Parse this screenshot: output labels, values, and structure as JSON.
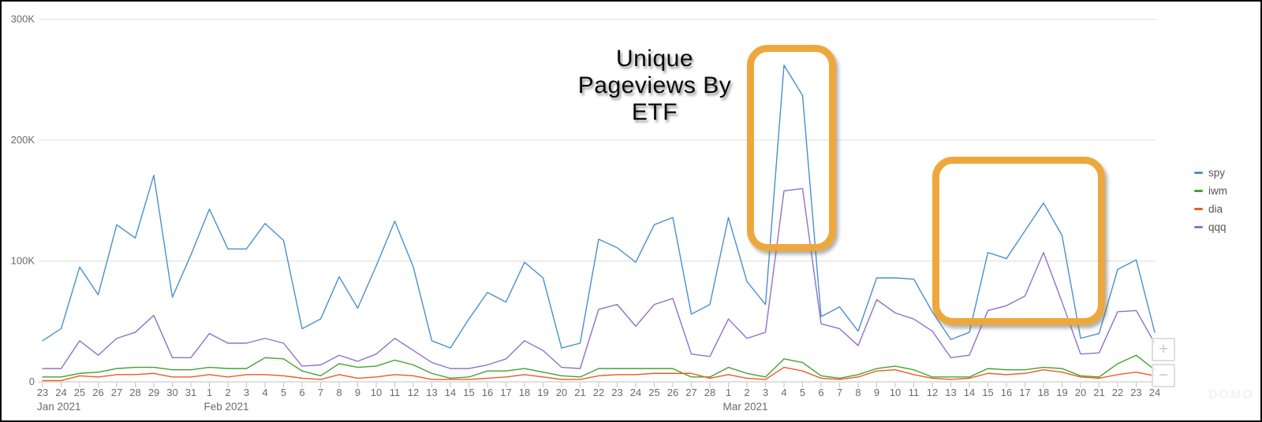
{
  "watermark": "DOMO",
  "zoom_controls": {
    "zoom_in_label": "+",
    "zoom_out_label": "−"
  },
  "annotations": {
    "title_lines": [
      "Unique",
      "Pageviews By",
      "ETF"
    ],
    "box_color": "#eda83d",
    "highlight_boxes": [
      {
        "name": "mar-4-5-spike",
        "from_day_index": 38.0,
        "to_day_index": 42.8,
        "top_k": 279,
        "bottom_k": 108
      },
      {
        "name": "mar-15-19-rally",
        "from_day_index": 48.0,
        "to_day_index": 57.3,
        "top_k": 186,
        "bottom_k": 47
      }
    ]
  },
  "chart_data": {
    "type": "line",
    "title": "Unique Pageviews By ETF",
    "unit": "unique pageviews, values in thousands (K)",
    "grid": true,
    "legend_position": "right",
    "ylim_k": [
      0,
      300
    ],
    "y_ticks": [
      {
        "value_k": 0,
        "label": "0"
      },
      {
        "value_k": 100,
        "label": "100K"
      },
      {
        "value_k": 200,
        "label": "200K"
      },
      {
        "value_k": 300,
        "label": "300K"
      }
    ],
    "month_labels": [
      {
        "label": "Jan 2021",
        "day_index": 0
      },
      {
        "label": "Feb 2021",
        "day_index": 9
      },
      {
        "label": "Mar 2021",
        "day_index": 37
      }
    ],
    "x_tick_labels": [
      "23",
      "24",
      "25",
      "26",
      "27",
      "28",
      "29",
      "30",
      "31",
      "1",
      "2",
      "3",
      "4",
      "5",
      "6",
      "7",
      "8",
      "9",
      "10",
      "11",
      "12",
      "13",
      "14",
      "15",
      "16",
      "17",
      "18",
      "19",
      "20",
      "21",
      "22",
      "23",
      "24",
      "25",
      "26",
      "27",
      "28",
      "1",
      "2",
      "3",
      "4",
      "5",
      "6",
      "7",
      "8",
      "9",
      "10",
      "11",
      "12",
      "13",
      "14",
      "15",
      "16",
      "17",
      "18",
      "19",
      "20",
      "21",
      "22",
      "23",
      "24"
    ],
    "series": [
      {
        "name": "spy",
        "color": "#4a90cd",
        "values_k": [
          34,
          44,
          95,
          72,
          130,
          119,
          171,
          70,
          105,
          143,
          110,
          110,
          131,
          117,
          44,
          52,
          87,
          61,
          96,
          133,
          95,
          34,
          28,
          52,
          74,
          66,
          99,
          86,
          28,
          32,
          118,
          111,
          99,
          130,
          136,
          56,
          64,
          136,
          83,
          64,
          262,
          237,
          54,
          62,
          42,
          86,
          86,
          85,
          58,
          35,
          41,
          107,
          102,
          125,
          148,
          121,
          36,
          40,
          93,
          101,
          41
        ]
      },
      {
        "name": "iwm",
        "color": "#42a32f",
        "values_k": [
          4,
          4,
          7,
          8,
          11,
          12,
          12,
          10,
          10,
          12,
          11,
          11,
          20,
          19,
          9,
          5,
          15,
          12,
          13,
          18,
          14,
          7,
          3,
          4,
          9,
          9,
          11,
          8,
          5,
          4,
          11,
          11,
          11,
          11,
          11,
          4,
          4,
          12,
          7,
          4,
          19,
          16,
          5,
          3,
          6,
          11,
          13,
          10,
          4,
          4,
          4,
          11,
          10,
          10,
          12,
          11,
          5,
          4,
          15,
          22,
          10
        ]
      },
      {
        "name": "dia",
        "color": "#f25822",
        "values_k": [
          1,
          1,
          5,
          4,
          6,
          6,
          7,
          4,
          4,
          6,
          4,
          6,
          6,
          5,
          3,
          2,
          6,
          3,
          4,
          6,
          5,
          2,
          2,
          2,
          3,
          4,
          6,
          4,
          2,
          2,
          5,
          6,
          6,
          7,
          7,
          7,
          3,
          6,
          3,
          2,
          12,
          9,
          3,
          2,
          4,
          9,
          10,
          6,
          3,
          2,
          3,
          7,
          6,
          7,
          10,
          8,
          4,
          3,
          6,
          8,
          5
        ]
      },
      {
        "name": "qqq",
        "color": "#9270ca",
        "values_k": [
          11,
          11,
          34,
          22,
          36,
          41,
          55,
          20,
          20,
          40,
          32,
          32,
          36,
          32,
          13,
          14,
          22,
          17,
          23,
          36,
          26,
          16,
          11,
          11,
          14,
          19,
          34,
          26,
          12,
          11,
          60,
          64,
          46,
          64,
          69,
          23,
          21,
          52,
          36,
          41,
          158,
          160,
          48,
          44,
          30,
          68,
          57,
          52,
          42,
          20,
          22,
          59,
          63,
          71,
          107,
          66,
          23,
          24,
          58,
          59,
          32
        ]
      }
    ]
  }
}
